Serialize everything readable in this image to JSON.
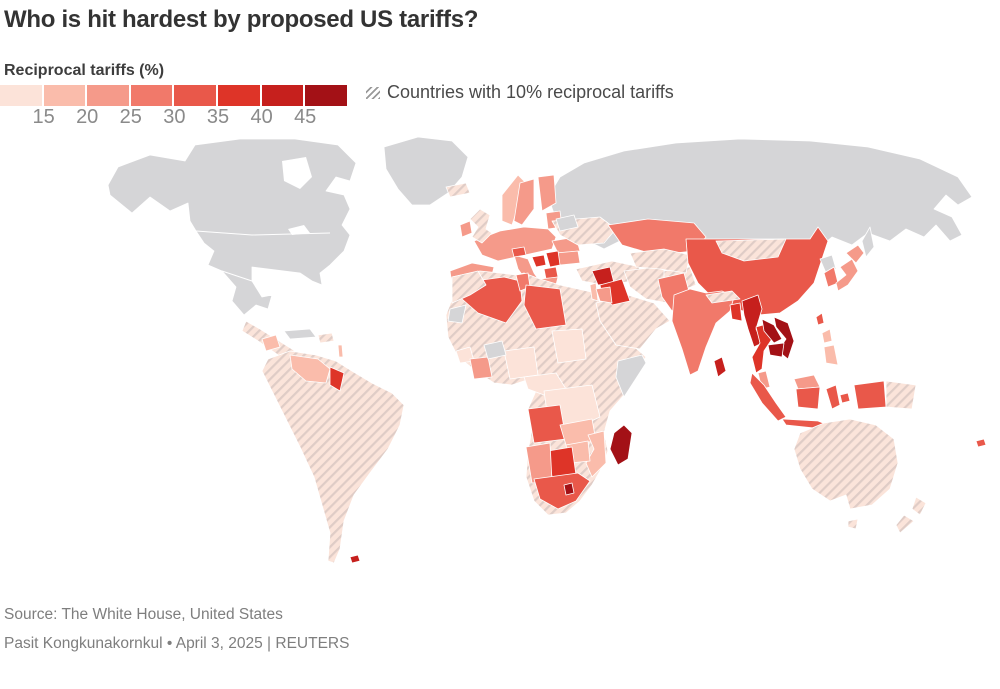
{
  "header": {
    "title": "Who is hit hardest by proposed US tariffs?"
  },
  "legend": {
    "label": "Reciprocal tariffs (%)",
    "ticks": [
      "15",
      "20",
      "25",
      "30",
      "35",
      "40",
      "45"
    ],
    "colors": [
      "#fce3d9",
      "#fabcab",
      "#f59a8a",
      "#f1796a",
      "#e9584a",
      "#de3428",
      "#c6201d",
      "#a31116"
    ],
    "hatch_note": "Countries with 10% reciprocal tariffs"
  },
  "map": {
    "no_data_color": "#d5d5d7",
    "hatch_base": "#fbe4da",
    "hatch_stripe": "#dfccc6",
    "border_color": "#ffffff"
  },
  "footer": {
    "source": "Source: The White House, United States",
    "byline": "Pasit Kongkunakornkul • April 3, 2025 | REUTERS"
  },
  "chart_data": {
    "type": "choropleth",
    "title": "Who is hit hardest by proposed US tariffs?",
    "unit": "reciprocal tariff (%)",
    "scale": {
      "tick_values": [
        15,
        20,
        25,
        30,
        35,
        40,
        45
      ],
      "colors": [
        "#fce3d9",
        "#fabcab",
        "#f59a8a",
        "#f1796a",
        "#e9584a",
        "#de3428",
        "#c6201d",
        "#a31116"
      ]
    },
    "regions": [
      {
        "name": "European Union",
        "value": 20
      },
      {
        "name": "Norway",
        "value": 15
      },
      {
        "name": "Switzerland",
        "value": 31
      },
      {
        "name": "Serbia",
        "value": 37
      },
      {
        "name": "Bosnia and Herzegovina",
        "value": 35
      },
      {
        "name": "North Macedonia",
        "value": 33
      },
      {
        "name": "China",
        "value": 34
      },
      {
        "name": "Japan",
        "value": 24
      },
      {
        "name": "South Korea",
        "value": 25
      },
      {
        "name": "Taiwan",
        "value": 32
      },
      {
        "name": "India",
        "value": 26
      },
      {
        "name": "Pakistan",
        "value": 29
      },
      {
        "name": "Bangladesh",
        "value": 37
      },
      {
        "name": "Sri Lanka",
        "value": 44
      },
      {
        "name": "Kazakhstan",
        "value": 27
      },
      {
        "name": "Vietnam",
        "value": 46
      },
      {
        "name": "Laos",
        "value": 48
      },
      {
        "name": "Cambodia",
        "value": 49
      },
      {
        "name": "Myanmar",
        "value": 44
      },
      {
        "name": "Thailand",
        "value": 36
      },
      {
        "name": "Indonesia",
        "value": 32
      },
      {
        "name": "Malaysia",
        "value": 24
      },
      {
        "name": "Philippines",
        "value": 17
      },
      {
        "name": "Fiji",
        "value": 32
      },
      {
        "name": "Israel",
        "value": 17
      },
      {
        "name": "Jordan",
        "value": 20
      },
      {
        "name": "Syria",
        "value": 41
      },
      {
        "name": "Iraq",
        "value": 39
      },
      {
        "name": "Algeria",
        "value": 30
      },
      {
        "name": "Libya",
        "value": 31
      },
      {
        "name": "Tunisia",
        "value": 28
      },
      {
        "name": "Nigeria",
        "value": 14
      },
      {
        "name": "Chad",
        "value": 13
      },
      {
        "name": "Ivory Coast",
        "value": 21
      },
      {
        "name": "Angola",
        "value": 32
      },
      {
        "name": "Democratic Republic of the Congo",
        "value": 11
      },
      {
        "name": "Zambia",
        "value": 17
      },
      {
        "name": "Zimbabwe",
        "value": 18
      },
      {
        "name": "Mozambique",
        "value": 16
      },
      {
        "name": "Botswana",
        "value": 37
      },
      {
        "name": "Namibia",
        "value": 21
      },
      {
        "name": "South Africa",
        "value": 30
      },
      {
        "name": "Lesotho",
        "value": 50
      },
      {
        "name": "Madagascar",
        "value": 47
      },
      {
        "name": "Venezuela",
        "value": 15
      },
      {
        "name": "Guyana",
        "value": 38
      },
      {
        "name": "Nicaragua",
        "value": 18
      },
      {
        "name": "Falkland Islands",
        "value": 41
      }
    ],
    "hatched_10_percent": [
      "United Kingdom",
      "Iceland",
      "Ukraine",
      "Turkey",
      "Saudi Arabia",
      "United Arab Emirates",
      "Yemen",
      "Oman",
      "Egypt",
      "Morocco",
      "Iran",
      "Afghanistan",
      "Uzbekistan",
      "Turkmenistan",
      "Mongolia",
      "Nepal",
      "Mauritania",
      "Mali",
      "Niger",
      "Sudan",
      "Ethiopia",
      "Kenya",
      "Tanzania",
      "Ghana",
      "Brazil",
      "Argentina",
      "Chile",
      "Colombia",
      "Peru",
      "Ecuador",
      "Bolivia",
      "Paraguay",
      "Uruguay",
      "Guatemala",
      "Honduras",
      "Costa Rica",
      "Panama",
      "Australia",
      "New Zealand",
      "Papua New Guinea"
    ],
    "no_data": [
      "United States",
      "Canada",
      "Mexico",
      "Greenland",
      "Russia",
      "Cuba",
      "Belarus",
      "North Korea",
      "Somalia",
      "Burkina Faso",
      "Western Sahara"
    ]
  }
}
